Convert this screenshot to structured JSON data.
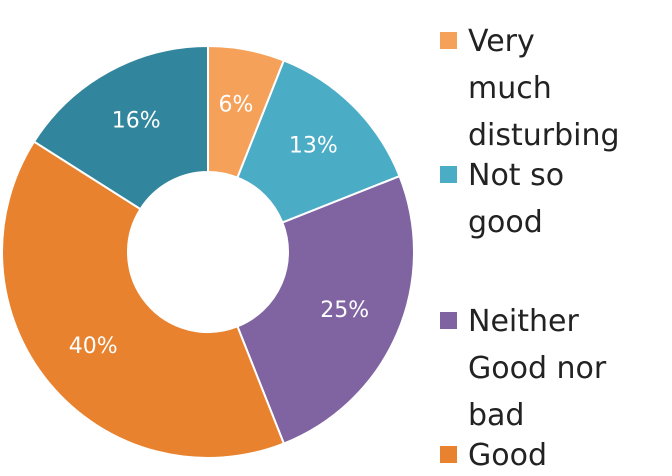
{
  "chart_data": {
    "type": "donut",
    "categories": [
      "Very much disturbing",
      "Not so good",
      "Neither Good nor bad",
      "Good",
      null
    ],
    "values": [
      6,
      13,
      25,
      40,
      16
    ],
    "value_labels": [
      "6%",
      "13%",
      "25%",
      "40%",
      "16%"
    ],
    "colors": [
      "#f5a15a",
      "#4bacc6",
      "#8064a2",
      "#e8822e",
      "#31859c"
    ],
    "legend": "right"
  }
}
